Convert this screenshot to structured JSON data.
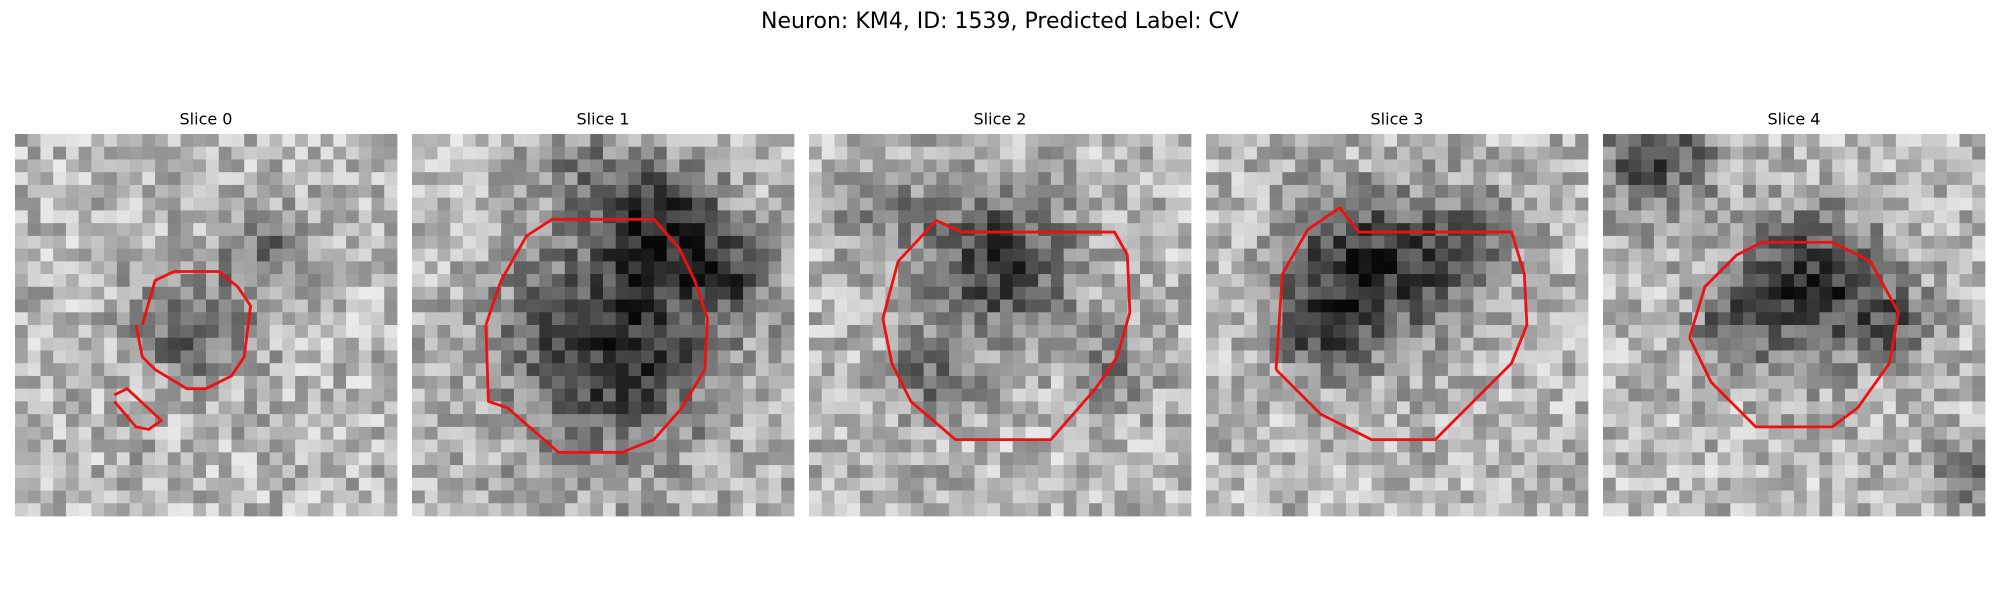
{
  "title": "Neuron: KM4, ID: 1539, Predicted Label: CV",
  "panels": [
    {
      "title": "Slice 0"
    },
    {
      "title": "Slice 1"
    },
    {
      "title": "Slice 2"
    },
    {
      "title": "Slice 3"
    },
    {
      "title": "Slice 4"
    }
  ]
}
